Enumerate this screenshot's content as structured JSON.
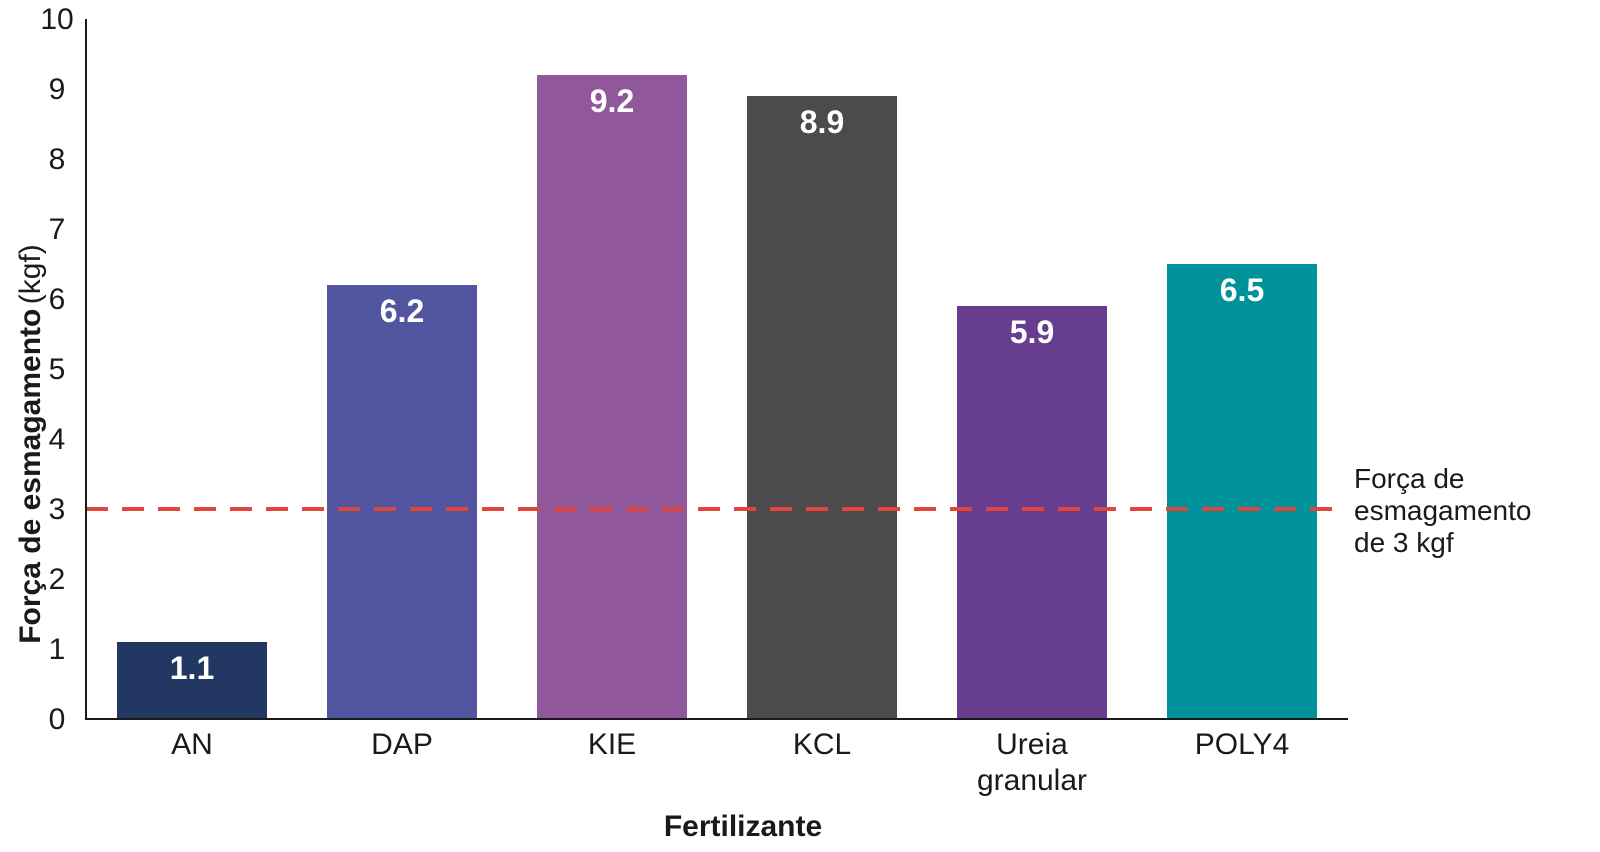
{
  "chart_data": {
    "type": "bar",
    "categories": [
      [
        "AN"
      ],
      [
        "DAP"
      ],
      [
        "KIE"
      ],
      [
        "KCL"
      ],
      [
        "Ureia",
        "granular"
      ],
      [
        "POLY4"
      ]
    ],
    "values": [
      1.1,
      6.2,
      9.2,
      8.9,
      5.9,
      6.5
    ],
    "value_labels": [
      "1.1",
      "6.2",
      "9.2",
      "8.9",
      "5.9",
      "6.5"
    ],
    "colors": [
      "#233763",
      "#52559f",
      "#91579b",
      "#4b4b4d",
      "#663d8f",
      "#00929b"
    ],
    "xlabel": "Fertilizante",
    "ylabel": "Força de esmagamento",
    "ylabel_unit": "(kgf)",
    "ylim": [
      0,
      10
    ],
    "yticks": [
      "0",
      "1",
      "2",
      "3",
      "4",
      "5",
      "6",
      "7",
      "8",
      "9",
      "10"
    ],
    "reference_line": {
      "value": 3,
      "color": "#e0443a",
      "style": "dashed",
      "label": [
        "Força de",
        "esmagamento",
        "de 3 kgf"
      ]
    },
    "grid": false,
    "legend": "none"
  }
}
